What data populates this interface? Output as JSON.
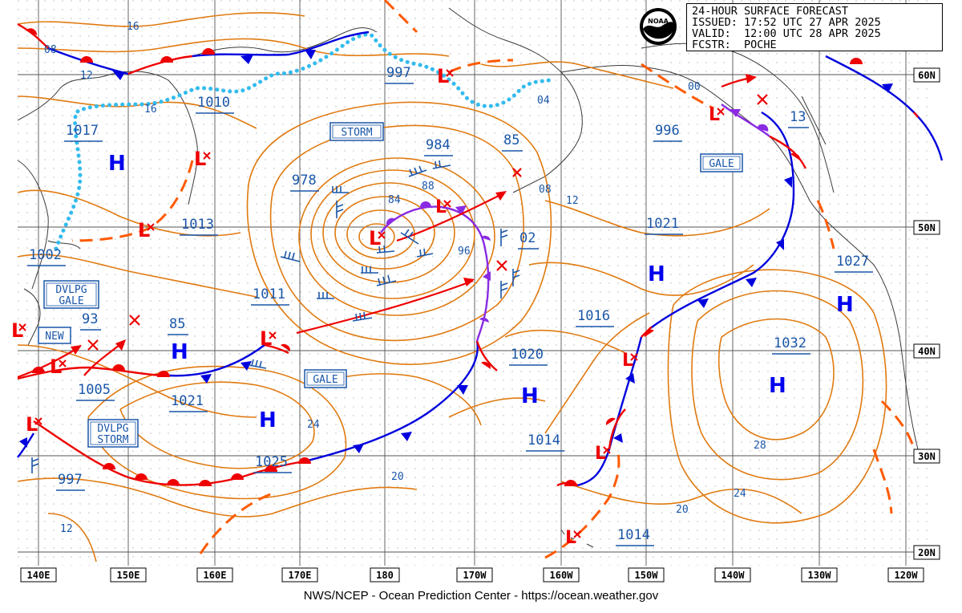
{
  "header": {
    "title": "24-HOUR SURFACE FORECAST",
    "issued": "ISSUED: 17:52 UTC 27 APR 2025",
    "valid": "VALID:  12:00 UTC 28 APR 2025",
    "forecaster": "FCSTR:  POCHE"
  },
  "logo_text": "NOAA",
  "credit": "NWS/NCEP - Ocean Prediction Center - https://ocean.weather.gov",
  "longitudes": [
    "140E",
    "150E",
    "160E",
    "170E",
    "180",
    "170W",
    "160W",
    "150W",
    "140W",
    "130W",
    "120W"
  ],
  "latitudes": [
    "60N",
    "50N",
    "40N",
    "30N",
    "20N"
  ],
  "pressure_labels": [
    {
      "text": "1017"
    },
    {
      "text": "1010"
    },
    {
      "text": "997"
    },
    {
      "text": "1013"
    },
    {
      "text": "1002"
    },
    {
      "text": "978"
    },
    {
      "text": "984"
    },
    {
      "text": "85"
    },
    {
      "text": "996"
    },
    {
      "text": "13"
    },
    {
      "text": "1011"
    },
    {
      "text": "93"
    },
    {
      "text": "85"
    },
    {
      "text": "1005"
    },
    {
      "text": "1021"
    },
    {
      "text": "1025"
    },
    {
      "text": "997"
    },
    {
      "text": "02"
    },
    {
      "text": "1021"
    },
    {
      "text": "1016"
    },
    {
      "text": "1020"
    },
    {
      "text": "1014"
    },
    {
      "text": "1014"
    },
    {
      "text": "1027"
    },
    {
      "text": "1032"
    }
  ],
  "isobar_numbers": [
    "16",
    "08",
    "12",
    "16",
    "04",
    "84",
    "88",
    "96",
    "08",
    "12",
    "00",
    "24",
    "20",
    "28",
    "24",
    "20",
    "12"
  ],
  "boxes": [
    {
      "lines": [
        "STORM"
      ]
    },
    {
      "lines": [
        "GALE"
      ]
    },
    {
      "lines": [
        "GALE"
      ]
    },
    {
      "lines": [
        "DVLPG",
        "GALE"
      ]
    },
    {
      "lines": [
        "NEW"
      ]
    },
    {
      "lines": [
        "DVLPG",
        "STORM"
      ]
    }
  ],
  "centers": {
    "high": "H",
    "low": "L"
  },
  "colors": {
    "isobar": "#e07a10",
    "coast": "#3a3a3a",
    "grid": "#555555",
    "cold_front": "#0000dd",
    "warm_front": "#ee0000",
    "occluded": "#8a2be2",
    "trough": "#ff5a00",
    "ridge": "#33bbee",
    "label": "#1a56a8",
    "low": "#ee0000",
    "high": "#0000ee"
  }
}
